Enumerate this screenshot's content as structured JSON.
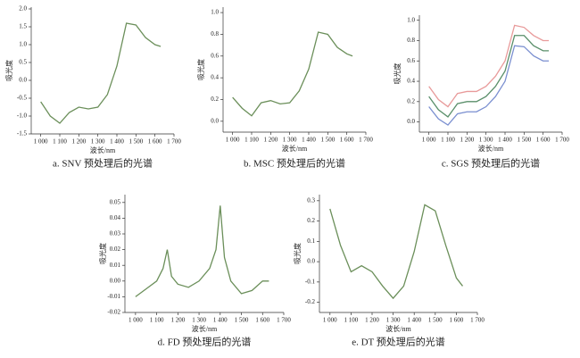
{
  "chart_data": [
    {
      "type": "line",
      "caption": "a. SNV 预处理后的光谱",
      "ylabel": "吸光度",
      "xlabel": "波长/nm",
      "x": [
        1000,
        1050,
        1100,
        1150,
        1200,
        1250,
        1300,
        1350,
        1400,
        1450,
        1500,
        1550,
        1600,
        1630
      ],
      "series": [
        {
          "color": "#6b8f5a",
          "values": [
            -0.6,
            -1.0,
            -1.2,
            -0.9,
            -0.75,
            -0.8,
            -0.75,
            -0.4,
            0.4,
            1.6,
            1.55,
            1.2,
            1.0,
            0.95
          ]
        }
      ],
      "xlim": [
        950,
        1700
      ],
      "ylim": [
        -1.5,
        2.05
      ],
      "xticks": [
        {
          "value": 1000,
          "label": "1 000"
        },
        {
          "value": 1100,
          "label": "1 100"
        },
        {
          "value": 1200,
          "label": "1 200"
        },
        {
          "value": 1300,
          "label": "1 300"
        },
        {
          "value": 1400,
          "label": "1 400"
        },
        {
          "value": 1500,
          "label": "1 500"
        },
        {
          "value": 1600,
          "label": "1 600"
        },
        {
          "value": 1700,
          "label": "1 700"
        }
      ],
      "yticks": [
        -1.5,
        {
          "value": -1,
          "label": "-1.0"
        },
        -0.5,
        {
          "value": 0,
          "label": "0.0"
        },
        0.5,
        {
          "value": 1,
          "label": "1.0"
        },
        1.5,
        {
          "value": 2,
          "label": "2.0"
        }
      ]
    },
    {
      "type": "line",
      "caption": "b. MSC 预处理后的光谱",
      "ylabel": "吸光度",
      "xlabel": "波长/nm",
      "x": [
        1000,
        1050,
        1100,
        1150,
        1200,
        1250,
        1300,
        1350,
        1400,
        1450,
        1500,
        1550,
        1600,
        1630
      ],
      "series": [
        {
          "color": "#6b8f5a",
          "values": [
            0.22,
            0.12,
            0.05,
            0.17,
            0.19,
            0.16,
            0.17,
            0.28,
            0.48,
            0.82,
            0.8,
            0.68,
            0.62,
            0.6
          ]
        }
      ],
      "xlim": [
        950,
        1700
      ],
      "ylim": [
        -0.1,
        1.05
      ],
      "xticks": [
        {
          "value": 1000,
          "label": "1 000"
        },
        {
          "value": 1100,
          "label": "1 100"
        },
        {
          "value": 1200,
          "label": "1 200"
        },
        {
          "value": 1300,
          "label": "1 300"
        },
        {
          "value": 1400,
          "label": "1 400"
        },
        {
          "value": 1500,
          "label": "1 500"
        },
        {
          "value": 1600,
          "label": "1 600"
        },
        {
          "value": 1700,
          "label": "1 700"
        }
      ],
      "yticks": [
        {
          "value": 0,
          "label": "0.0"
        },
        0.2,
        0.4,
        0.6,
        0.8,
        {
          "value": 1,
          "label": "1.0"
        }
      ]
    },
    {
      "type": "line",
      "caption": "c. SGS 预处理后的光谱",
      "ylabel": "吸光度",
      "xlabel": "波长/nm",
      "x": [
        1000,
        1050,
        1100,
        1150,
        1200,
        1250,
        1300,
        1350,
        1400,
        1450,
        1500,
        1550,
        1600,
        1630
      ],
      "series": [
        {
          "color": "#e89a9a",
          "values": [
            0.35,
            0.22,
            0.15,
            0.28,
            0.3,
            0.3,
            0.35,
            0.45,
            0.6,
            0.95,
            0.93,
            0.85,
            0.8,
            0.8
          ]
        },
        {
          "color": "#5a8f6a",
          "values": [
            0.25,
            0.12,
            0.05,
            0.18,
            0.2,
            0.2,
            0.25,
            0.35,
            0.5,
            0.85,
            0.85,
            0.75,
            0.7,
            0.7
          ]
        },
        {
          "color": "#7a8fd0",
          "values": [
            0.15,
            0.03,
            -0.03,
            0.08,
            0.1,
            0.1,
            0.15,
            0.25,
            0.4,
            0.75,
            0.74,
            0.65,
            0.6,
            0.6
          ]
        }
      ],
      "xlim": [
        950,
        1700
      ],
      "ylim": [
        -0.1,
        1.05
      ],
      "xticks": [
        {
          "value": 1000,
          "label": "1 000"
        },
        {
          "value": 1100,
          "label": "1 100"
        },
        {
          "value": 1200,
          "label": "1 200"
        },
        {
          "value": 1300,
          "label": "1 300"
        },
        {
          "value": 1400,
          "label": "1 400"
        },
        {
          "value": 1500,
          "label": "1 500"
        },
        {
          "value": 1600,
          "label": "1 600"
        },
        {
          "value": 1700,
          "label": "1 700"
        }
      ],
      "yticks": [
        {
          "value": 0,
          "label": "0.0"
        },
        0.2,
        0.4,
        0.6,
        0.8,
        {
          "value": 1,
          "label": "1.0"
        }
      ]
    },
    {
      "type": "line",
      "caption": "d. FD 预处理后的光谱",
      "ylabel": "吸光度",
      "xlabel": "波长/nm",
      "x": [
        1000,
        1050,
        1100,
        1130,
        1150,
        1170,
        1200,
        1250,
        1300,
        1350,
        1380,
        1400,
        1420,
        1450,
        1500,
        1550,
        1600,
        1630
      ],
      "series": [
        {
          "color": "#6b8f5a",
          "values": [
            -0.01,
            -0.005,
            0.0,
            0.008,
            0.02,
            0.003,
            -0.002,
            -0.004,
            0.0,
            0.008,
            0.02,
            0.048,
            0.015,
            0.0,
            -0.008,
            -0.006,
            0.0,
            0.0
          ]
        }
      ],
      "xlim": [
        950,
        1700
      ],
      "ylim": [
        -0.02,
        0.055
      ],
      "xticks": [
        {
          "value": 1000,
          "label": "1 000"
        },
        {
          "value": 1100,
          "label": "1 100"
        },
        {
          "value": 1200,
          "label": "1 200"
        },
        {
          "value": 1300,
          "label": "1 300"
        },
        {
          "value": 1400,
          "label": "1 400"
        },
        {
          "value": 1500,
          "label": "1 500"
        },
        {
          "value": 1600,
          "label": "1 600"
        },
        {
          "value": 1700,
          "label": "1 700"
        }
      ],
      "yticks": [
        -0.02,
        -0.01,
        {
          "value": 0,
          "label": "0.00"
        },
        0.01,
        0.02,
        0.03,
        0.04,
        0.05
      ]
    },
    {
      "type": "line",
      "caption": "e. DT 预处理后的光谱",
      "ylabel": "吸光度",
      "xlabel": "波长/nm",
      "x": [
        1000,
        1050,
        1100,
        1150,
        1200,
        1250,
        1300,
        1350,
        1400,
        1450,
        1500,
        1550,
        1600,
        1630
      ],
      "series": [
        {
          "color": "#6b8f5a",
          "values": [
            0.26,
            0.08,
            -0.05,
            -0.02,
            -0.05,
            -0.12,
            -0.18,
            -0.12,
            0.05,
            0.28,
            0.25,
            0.08,
            -0.08,
            -0.12
          ]
        }
      ],
      "xlim": [
        950,
        1700
      ],
      "ylim": [
        -0.25,
        0.33
      ],
      "xticks": [
        {
          "value": 1000,
          "label": "1 000"
        },
        {
          "value": 1100,
          "label": "1 100"
        },
        {
          "value": 1200,
          "label": "1 200"
        },
        {
          "value": 1300,
          "label": "1 300"
        },
        {
          "value": 1400,
          "label": "1 400"
        },
        {
          "value": 1500,
          "label": "1 500"
        },
        {
          "value": 1600,
          "label": "1 600"
        },
        {
          "value": 1700,
          "label": "1 700"
        }
      ],
      "yticks": [
        -0.2,
        -0.1,
        {
          "value": 0,
          "label": "0.0"
        },
        0.1,
        0.2,
        0.3
      ]
    }
  ]
}
